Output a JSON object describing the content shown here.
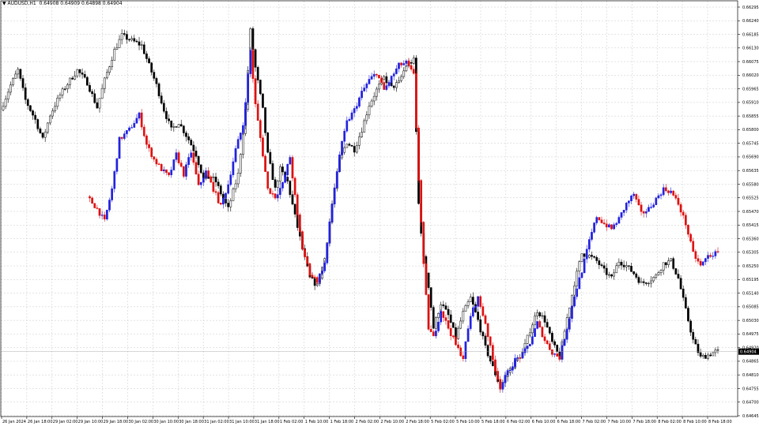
{
  "header": {
    "arrow": "▼",
    "symbol_tf": "AUDUSD,H1",
    "ohlc": [
      "0.64908",
      "0.64909",
      "0.64898",
      "0.64904"
    ]
  },
  "price_badge": "0.64904",
  "chart_data": {
    "type": "candlestick",
    "title": "AUDUSD,H1",
    "ylim": [
      0.64645,
      0.66295
    ],
    "y_ticks": [
      "0.66295",
      "0.66240",
      "0.66185",
      "0.66130",
      "0.66075",
      "0.66020",
      "0.65965",
      "0.65910",
      "0.65855",
      "0.65800",
      "0.65745",
      "0.65690",
      "0.65635",
      "0.65580",
      "0.65525",
      "0.65470",
      "0.65415",
      "0.65360",
      "0.65305",
      "0.65250",
      "0.65195",
      "0.65140",
      "0.65085",
      "0.65030",
      "0.64975",
      "0.64920",
      "0.64865",
      "0.64810",
      "0.64755",
      "0.64700",
      "0.64645"
    ],
    "x_ticks": [
      "26 Jan 2024",
      "26 Jan 18:00",
      "29 Jan 02:00",
      "29 Jan 10:00",
      "29 Jan 18:00",
      "30 Jan 02:00",
      "30 Jan 10:00",
      "30 Jan 18:00",
      "31 Jan 02:00",
      "31 Jan 10:00",
      "31 Jan 18:00",
      "1 Feb 02:00",
      "1 Feb 10:00",
      "1 Feb 18:00",
      "2 Feb 02:00",
      "2 Feb 10:00",
      "2 Feb 18:00",
      "5 Feb 02:00",
      "5 Feb 10:00",
      "5 Feb 18:00",
      "6 Feb 02:00",
      "6 Feb 10:00",
      "6 Feb 18:00",
      "7 Feb 02:00",
      "7 Feb 10:00",
      "7 Feb 18:00",
      "8 Feb 02:00",
      "8 Feb 10:00",
      "8 Feb 18:00"
    ],
    "grid": true,
    "colors": {
      "up": "#ffffff",
      "down": "#000000",
      "wick": "#000000",
      "overlay_up": "#2222dd",
      "overlay_down": "#dd1111",
      "grid": "#c8c8c8"
    },
    "series": [
      {
        "role": "main",
        "anchors": [
          [
            0,
            0.6588
          ],
          [
            4,
            0.6598
          ],
          [
            7,
            0.6604
          ],
          [
            10,
            0.6592
          ],
          [
            14,
            0.6584
          ],
          [
            17,
            0.6576
          ],
          [
            20,
            0.6586
          ],
          [
            24,
            0.6594
          ],
          [
            28,
            0.66
          ],
          [
            31,
            0.6604
          ],
          [
            35,
            0.6599
          ],
          [
            39,
            0.6589
          ],
          [
            42,
            0.66
          ],
          [
            46,
            0.6612
          ],
          [
            49,
            0.6618
          ],
          [
            53,
            0.6616
          ],
          [
            57,
            0.6614
          ],
          [
            60,
            0.6606
          ],
          [
            63,
            0.6598
          ],
          [
            66,
            0.6588
          ],
          [
            69,
            0.658
          ],
          [
            72,
            0.6583
          ],
          [
            76,
            0.6576
          ],
          [
            79,
            0.657
          ],
          [
            82,
            0.656
          ],
          [
            85,
            0.6561
          ],
          [
            87,
            0.6559
          ],
          [
            90,
            0.6552
          ],
          [
            92,
            0.6548
          ],
          [
            96,
            0.6562
          ],
          [
            99,
            0.6588
          ],
          [
            101,
            0.662
          ],
          [
            103,
            0.6605
          ],
          [
            106,
            0.6588
          ],
          [
            108,
            0.657
          ],
          [
            111,
            0.6556
          ],
          [
            113,
            0.6564
          ],
          [
            116,
            0.6559
          ],
          [
            119,
            0.6545
          ],
          [
            122,
            0.6532
          ],
          [
            125,
            0.652
          ],
          [
            128,
            0.6517
          ],
          [
            131,
            0.6528
          ],
          [
            134,
            0.655
          ],
          [
            137,
            0.6568
          ],
          [
            140,
            0.6575
          ],
          [
            143,
            0.6572
          ],
          [
            146,
            0.658
          ],
          [
            149,
            0.659
          ],
          [
            152,
            0.6596
          ],
          [
            155,
            0.6601
          ],
          [
            158,
            0.6597
          ],
          [
            161,
            0.6599
          ],
          [
            164,
            0.6606
          ],
          [
            167,
            0.6608
          ],
          [
            169,
            0.655
          ],
          [
            171,
            0.6528
          ],
          [
            173,
            0.6517
          ],
          [
            175,
            0.65
          ],
          [
            178,
            0.651
          ],
          [
            181,
            0.6505
          ],
          [
            184,
            0.6496
          ],
          [
            187,
            0.6506
          ],
          [
            190,
            0.6512
          ],
          [
            193,
            0.6503
          ],
          [
            196,
            0.6492
          ],
          [
            199,
            0.6484
          ],
          [
            202,
            0.6476
          ],
          [
            205,
            0.6482
          ],
          [
            208,
            0.6486
          ],
          [
            211,
            0.649
          ],
          [
            214,
            0.6499
          ],
          [
            217,
            0.6507
          ],
          [
            220,
            0.6503
          ],
          [
            223,
            0.6494
          ],
          [
            226,
            0.6488
          ],
          [
            229,
            0.6504
          ],
          [
            232,
            0.6518
          ],
          [
            235,
            0.653
          ],
          [
            238,
            0.6529
          ],
          [
            241,
            0.6527
          ],
          [
            244,
            0.6523
          ],
          [
            247,
            0.652
          ],
          [
            250,
            0.6527
          ],
          [
            253,
            0.6525
          ],
          [
            256,
            0.6522
          ],
          [
            259,
            0.6518
          ],
          [
            262,
            0.6519
          ],
          [
            265,
            0.6521
          ],
          [
            268,
            0.6526
          ],
          [
            271,
            0.6527
          ],
          [
            274,
            0.652
          ],
          [
            277,
            0.6507
          ],
          [
            280,
            0.6495
          ],
          [
            283,
            0.6488
          ],
          [
            286,
            0.6489
          ],
          [
            289,
            0.64904
          ]
        ],
        "amplitude": 0.00022
      },
      {
        "role": "overlay",
        "start_index": 35,
        "anchors": [
          [
            35,
            0.6553
          ],
          [
            39,
            0.6548
          ],
          [
            42,
            0.6543
          ],
          [
            45,
            0.6556
          ],
          [
            48,
            0.6576
          ],
          [
            52,
            0.658
          ],
          [
            56,
            0.6586
          ],
          [
            59,
            0.6574
          ],
          [
            62,
            0.6568
          ],
          [
            65,
            0.6564
          ],
          [
            68,
            0.6561
          ],
          [
            71,
            0.657
          ],
          [
            74,
            0.6562
          ],
          [
            77,
            0.6571
          ],
          [
            80,
            0.6557
          ],
          [
            83,
            0.6563
          ],
          [
            86,
            0.6556
          ],
          [
            89,
            0.6549
          ],
          [
            92,
            0.6558
          ],
          [
            95,
            0.6572
          ],
          [
            98,
            0.6582
          ],
          [
            101,
            0.6612
          ],
          [
            103,
            0.659
          ],
          [
            106,
            0.657
          ],
          [
            108,
            0.6556
          ],
          [
            111,
            0.6553
          ],
          [
            114,
            0.6558
          ],
          [
            117,
            0.6569
          ],
          [
            120,
            0.6545
          ],
          [
            122,
            0.6532
          ],
          [
            125,
            0.6522
          ],
          [
            128,
            0.6519
          ],
          [
            131,
            0.6526
          ],
          [
            134,
            0.655
          ],
          [
            137,
            0.657
          ],
          [
            140,
            0.6583
          ],
          [
            143,
            0.6588
          ],
          [
            146,
            0.6595
          ],
          [
            149,
            0.66
          ],
          [
            152,
            0.6603
          ],
          [
            155,
            0.6596
          ],
          [
            158,
            0.6601
          ],
          [
            161,
            0.6606
          ],
          [
            164,
            0.6607
          ],
          [
            167,
            0.6602
          ],
          [
            169,
            0.656
          ],
          [
            171,
            0.6525
          ],
          [
            173,
            0.65
          ],
          [
            175,
            0.6496
          ],
          [
            178,
            0.6507
          ],
          [
            181,
            0.65
          ],
          [
            184,
            0.6493
          ],
          [
            187,
            0.6488
          ],
          [
            190,
            0.6505
          ],
          [
            193,
            0.6512
          ],
          [
            196,
            0.6502
          ],
          [
            199,
            0.6487
          ],
          [
            202,
            0.6476
          ],
          [
            205,
            0.6482
          ],
          [
            208,
            0.6487
          ],
          [
            211,
            0.6489
          ],
          [
            214,
            0.6494
          ],
          [
            217,
            0.6502
          ],
          [
            220,
            0.6495
          ],
          [
            223,
            0.649
          ],
          [
            226,
            0.6488
          ],
          [
            229,
            0.65
          ],
          [
            232,
            0.6513
          ],
          [
            235,
            0.6523
          ],
          [
            238,
            0.6535
          ],
          [
            241,
            0.6545
          ],
          [
            244,
            0.6542
          ],
          [
            247,
            0.654
          ],
          [
            250,
            0.6544
          ],
          [
            253,
            0.655
          ],
          [
            256,
            0.6554
          ],
          [
            259,
            0.6546
          ],
          [
            262,
            0.6548
          ],
          [
            265,
            0.6552
          ],
          [
            268,
            0.6556
          ],
          [
            271,
            0.6555
          ],
          [
            274,
            0.655
          ],
          [
            277,
            0.6542
          ],
          [
            280,
            0.653
          ],
          [
            283,
            0.6525
          ],
          [
            286,
            0.6529
          ],
          [
            289,
            0.653
          ]
        ],
        "amplitude": 0.0002
      }
    ]
  }
}
